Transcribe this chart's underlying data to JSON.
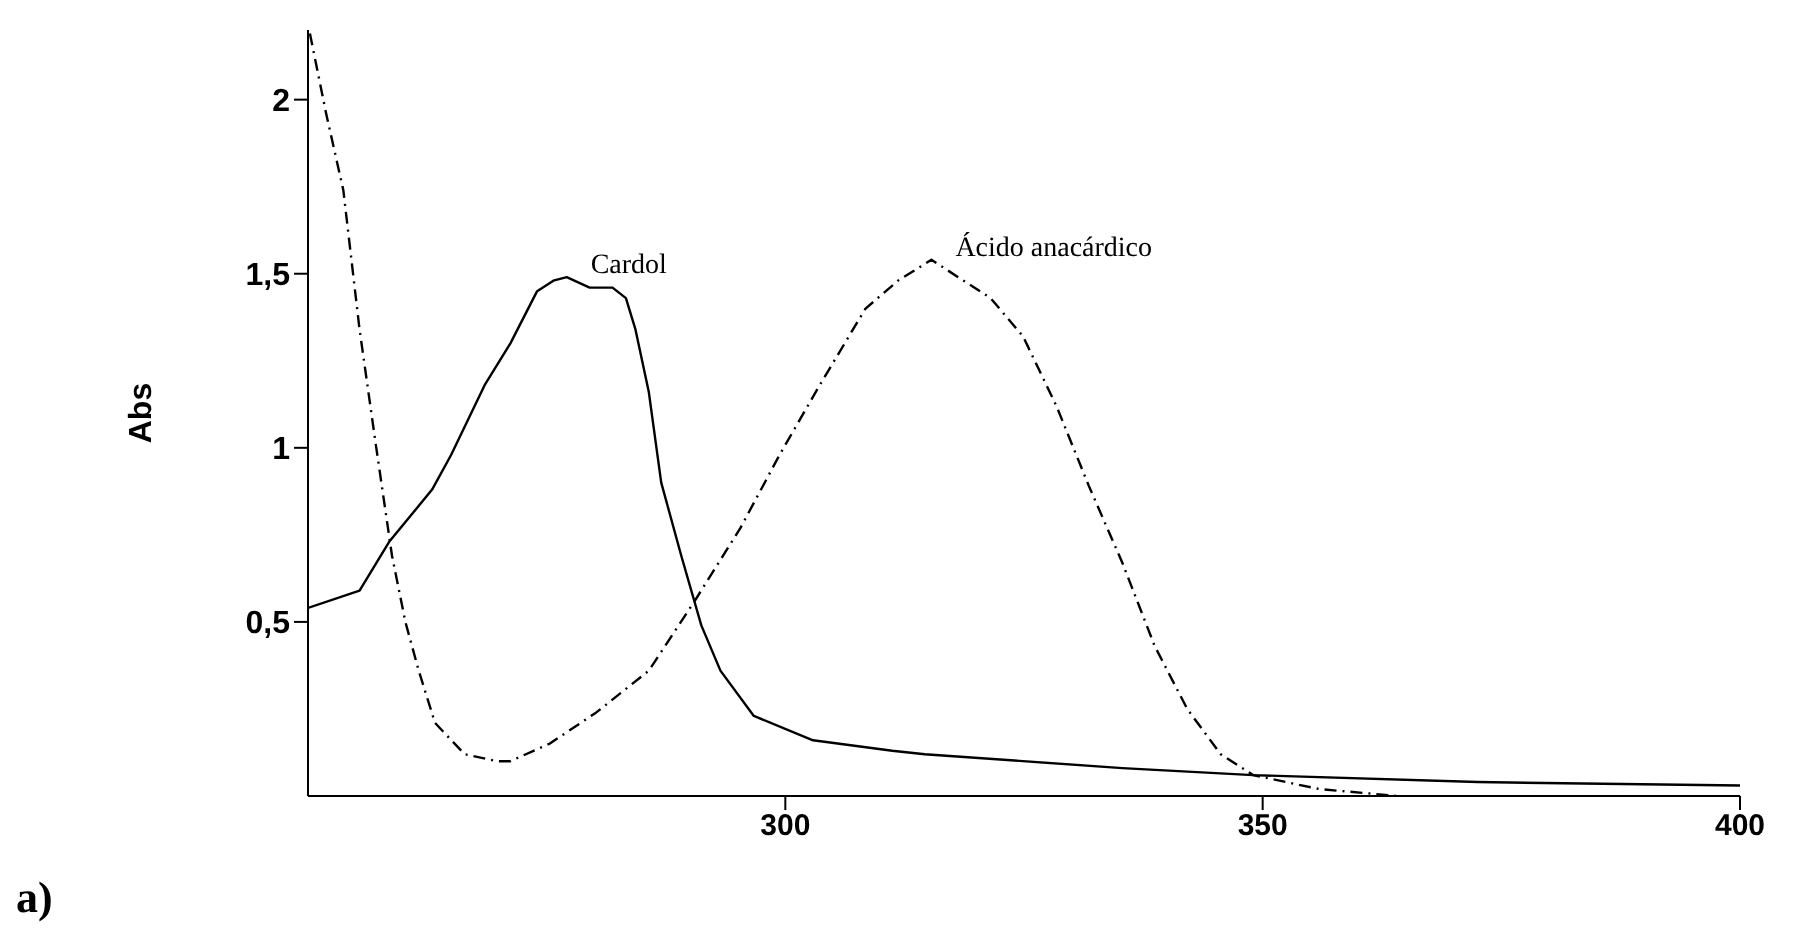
{
  "chart_data": {
    "type": "line",
    "ylabel": "Abs",
    "annotations": [
      "a)"
    ],
    "xlim": [
      250,
      400
    ],
    "xticks": [
      300,
      350,
      400
    ],
    "ylim": [
      0,
      2.2
    ],
    "yticks": [
      {
        "value": 0.5,
        "label": "0,5"
      },
      1,
      {
        "value": 1.5,
        "label": "1,5"
      },
      2
    ],
    "grid": false,
    "legend": false,
    "marker": "none",
    "series": [
      {
        "name": "Cardol",
        "color": "#000000",
        "line_style": "solid",
        "x": [
          250,
          255.4,
          258.5,
          263,
          265,
          268.5,
          271.2,
          274,
          275.7,
          277.1,
          279.5,
          281.9,
          283.3,
          284.3,
          285.7,
          287,
          289.1,
          291.2,
          293.2,
          296.7,
          302.9,
          311.2,
          314.6,
          335.3,
          349,
          372.5,
          400
        ],
        "values": [
          0.54,
          0.59,
          0.73,
          0.88,
          0.98,
          1.18,
          1.3,
          1.45,
          1.48,
          1.49,
          1.46,
          1.46,
          1.43,
          1.34,
          1.16,
          0.9,
          0.69,
          0.49,
          0.36,
          0.23,
          0.16,
          0.13,
          0.12,
          0.08,
          0.06,
          0.04,
          0.03
        ]
      },
      {
        "name": "Ácido anacárdico",
        "color": "#000000",
        "line_style": "dashed",
        "x": [
          250.2,
          251.9,
          253.7,
          255.4,
          257.1,
          258.8,
          260.2,
          261.6,
          263.3,
          266.4,
          269.8,
          271.2,
          275.3,
          280.2,
          285.7,
          290.5,
          295.3,
          299.4,
          303.6,
          308.4,
          311.8,
          315.3,
          321.5,
          324.9,
          328.4,
          331.8,
          335.3,
          338.7,
          342.1,
          345.6,
          349,
          355.9,
          364.2
        ],
        "values": [
          2.19,
          1.96,
          1.74,
          1.34,
          1.01,
          0.69,
          0.5,
          0.36,
          0.21,
          0.12,
          0.1,
          0.1,
          0.15,
          0.24,
          0.36,
          0.56,
          0.77,
          0.98,
          1.18,
          1.4,
          1.48,
          1.54,
          1.43,
          1.32,
          1.12,
          0.89,
          0.67,
          0.43,
          0.25,
          0.12,
          0.06,
          0.02,
          0
        ]
      }
    ]
  }
}
